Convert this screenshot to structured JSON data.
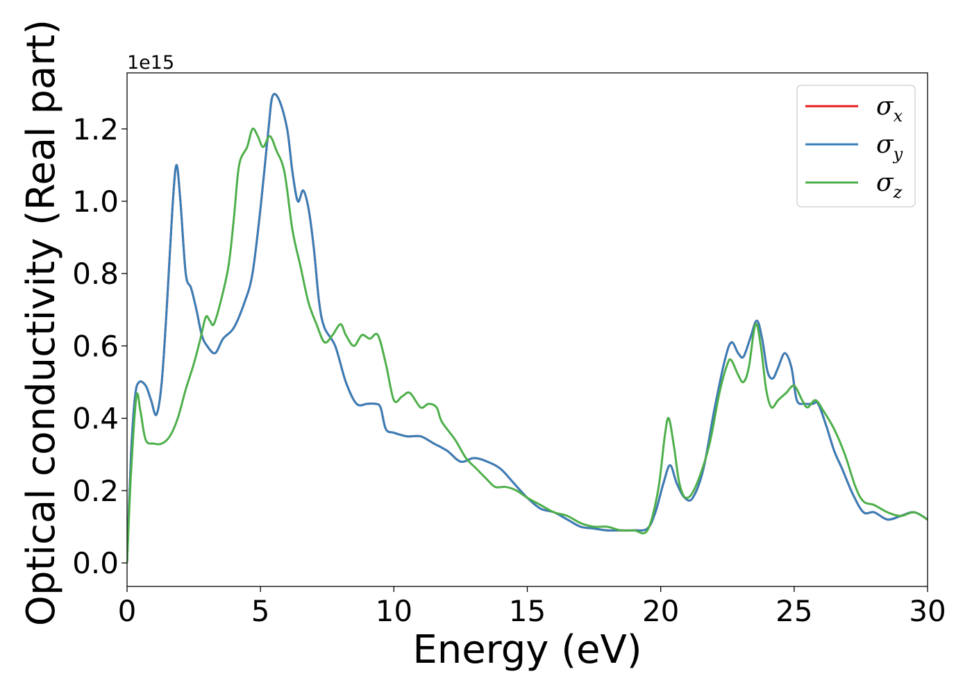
{
  "chart_data": {
    "type": "line",
    "xlabel": "Energy (eV)",
    "ylabel": "Optical conductivity (Real part)",
    "y_offset_text": "1e15",
    "xlim": [
      0,
      30
    ],
    "ylim": [
      -0.065,
      1.355
    ],
    "x_ticks": [
      0,
      5,
      10,
      15,
      20,
      25,
      30
    ],
    "x_tick_labels": [
      "0",
      "5",
      "10",
      "15",
      "20",
      "25",
      "30"
    ],
    "y_ticks": [
      0.0,
      0.2,
      0.4,
      0.6,
      0.8,
      1.0,
      1.2
    ],
    "y_tick_labels": [
      "0.0",
      "0.2",
      "0.4",
      "0.6",
      "0.8",
      "1.0",
      "1.2"
    ],
    "grid": false,
    "legend_position": "top-right",
    "series": [
      {
        "name": "σx",
        "legend_symbol": "σ",
        "legend_sub": "x",
        "color": "#e41a1c",
        "points": [
          [
            0,
            0
          ],
          [
            0.15,
            0.3
          ],
          [
            0.3,
            0.46
          ],
          [
            0.45,
            0.5
          ],
          [
            0.7,
            0.49
          ],
          [
            0.9,
            0.45
          ],
          [
            1.1,
            0.41
          ],
          [
            1.3,
            0.5
          ],
          [
            1.5,
            0.72
          ],
          [
            1.7,
            0.98
          ],
          [
            1.85,
            1.1
          ],
          [
            2.0,
            1.0
          ],
          [
            2.2,
            0.8
          ],
          [
            2.4,
            0.76
          ],
          [
            2.6,
            0.7
          ],
          [
            2.8,
            0.63
          ],
          [
            3.0,
            0.6
          ],
          [
            3.3,
            0.58
          ],
          [
            3.6,
            0.62
          ],
          [
            4.0,
            0.65
          ],
          [
            4.4,
            0.72
          ],
          [
            4.7,
            0.8
          ],
          [
            5.0,
            0.98
          ],
          [
            5.3,
            1.2
          ],
          [
            5.45,
            1.29
          ],
          [
            5.7,
            1.28
          ],
          [
            6.0,
            1.2
          ],
          [
            6.2,
            1.08
          ],
          [
            6.4,
            1.0
          ],
          [
            6.6,
            1.03
          ],
          [
            6.8,
            0.98
          ],
          [
            7.0,
            0.87
          ],
          [
            7.2,
            0.72
          ],
          [
            7.4,
            0.65
          ],
          [
            7.8,
            0.6
          ],
          [
            8.2,
            0.5
          ],
          [
            8.6,
            0.44
          ],
          [
            9.0,
            0.44
          ],
          [
            9.3,
            0.44
          ],
          [
            9.5,
            0.43
          ],
          [
            9.7,
            0.37
          ],
          [
            10.0,
            0.36
          ],
          [
            10.5,
            0.35
          ],
          [
            11.0,
            0.35
          ],
          [
            11.5,
            0.33
          ],
          [
            12.0,
            0.31
          ],
          [
            12.5,
            0.28
          ],
          [
            13.0,
            0.29
          ],
          [
            13.5,
            0.28
          ],
          [
            14.0,
            0.26
          ],
          [
            14.5,
            0.22
          ],
          [
            15.0,
            0.18
          ],
          [
            15.5,
            0.15
          ],
          [
            16.0,
            0.14
          ],
          [
            16.5,
            0.12
          ],
          [
            17.0,
            0.1
          ],
          [
            17.5,
            0.095
          ],
          [
            18.0,
            0.09
          ],
          [
            18.5,
            0.09
          ],
          [
            19.0,
            0.09
          ],
          [
            19.5,
            0.095
          ],
          [
            19.8,
            0.14
          ],
          [
            20.1,
            0.22
          ],
          [
            20.35,
            0.27
          ],
          [
            20.6,
            0.22
          ],
          [
            20.9,
            0.18
          ],
          [
            21.2,
            0.18
          ],
          [
            21.6,
            0.26
          ],
          [
            22.0,
            0.42
          ],
          [
            22.4,
            0.56
          ],
          [
            22.65,
            0.61
          ],
          [
            22.9,
            0.58
          ],
          [
            23.1,
            0.57
          ],
          [
            23.35,
            0.62
          ],
          [
            23.6,
            0.67
          ],
          [
            23.8,
            0.62
          ],
          [
            24.0,
            0.53
          ],
          [
            24.2,
            0.51
          ],
          [
            24.4,
            0.54
          ],
          [
            24.65,
            0.58
          ],
          [
            24.9,
            0.54
          ],
          [
            25.1,
            0.45
          ],
          [
            25.4,
            0.44
          ],
          [
            25.7,
            0.44
          ],
          [
            25.9,
            0.44
          ],
          [
            26.2,
            0.38
          ],
          [
            26.5,
            0.31
          ],
          [
            26.8,
            0.26
          ],
          [
            27.2,
            0.19
          ],
          [
            27.6,
            0.14
          ],
          [
            28.0,
            0.14
          ],
          [
            28.5,
            0.12
          ],
          [
            29.0,
            0.13
          ],
          [
            29.5,
            0.14
          ],
          [
            30.0,
            0.12
          ]
        ]
      },
      {
        "name": "σy",
        "legend_symbol": "σ",
        "legend_sub": "y",
        "color": "#377eb8",
        "points": [
          [
            0,
            0
          ],
          [
            0.15,
            0.3
          ],
          [
            0.3,
            0.46
          ],
          [
            0.45,
            0.5
          ],
          [
            0.7,
            0.49
          ],
          [
            0.9,
            0.45
          ],
          [
            1.1,
            0.41
          ],
          [
            1.3,
            0.5
          ],
          [
            1.5,
            0.72
          ],
          [
            1.7,
            0.98
          ],
          [
            1.85,
            1.1
          ],
          [
            2.0,
            1.0
          ],
          [
            2.2,
            0.8
          ],
          [
            2.4,
            0.76
          ],
          [
            2.6,
            0.7
          ],
          [
            2.8,
            0.63
          ],
          [
            3.0,
            0.6
          ],
          [
            3.3,
            0.58
          ],
          [
            3.6,
            0.62
          ],
          [
            4.0,
            0.65
          ],
          [
            4.4,
            0.72
          ],
          [
            4.7,
            0.8
          ],
          [
            5.0,
            0.98
          ],
          [
            5.3,
            1.2
          ],
          [
            5.45,
            1.29
          ],
          [
            5.7,
            1.28
          ],
          [
            6.0,
            1.2
          ],
          [
            6.2,
            1.08
          ],
          [
            6.4,
            1.0
          ],
          [
            6.6,
            1.03
          ],
          [
            6.8,
            0.98
          ],
          [
            7.0,
            0.87
          ],
          [
            7.2,
            0.72
          ],
          [
            7.4,
            0.65
          ],
          [
            7.8,
            0.6
          ],
          [
            8.2,
            0.5
          ],
          [
            8.6,
            0.44
          ],
          [
            9.0,
            0.44
          ],
          [
            9.3,
            0.44
          ],
          [
            9.5,
            0.43
          ],
          [
            9.7,
            0.37
          ],
          [
            10.0,
            0.36
          ],
          [
            10.5,
            0.35
          ],
          [
            11.0,
            0.35
          ],
          [
            11.5,
            0.33
          ],
          [
            12.0,
            0.31
          ],
          [
            12.5,
            0.28
          ],
          [
            13.0,
            0.29
          ],
          [
            13.5,
            0.28
          ],
          [
            14.0,
            0.26
          ],
          [
            14.5,
            0.22
          ],
          [
            15.0,
            0.18
          ],
          [
            15.5,
            0.15
          ],
          [
            16.0,
            0.14
          ],
          [
            16.5,
            0.12
          ],
          [
            17.0,
            0.1
          ],
          [
            17.5,
            0.095
          ],
          [
            18.0,
            0.09
          ],
          [
            18.5,
            0.09
          ],
          [
            19.0,
            0.09
          ],
          [
            19.5,
            0.095
          ],
          [
            19.8,
            0.14
          ],
          [
            20.1,
            0.22
          ],
          [
            20.35,
            0.27
          ],
          [
            20.6,
            0.22
          ],
          [
            20.9,
            0.18
          ],
          [
            21.2,
            0.18
          ],
          [
            21.6,
            0.26
          ],
          [
            22.0,
            0.42
          ],
          [
            22.4,
            0.56
          ],
          [
            22.65,
            0.61
          ],
          [
            22.9,
            0.58
          ],
          [
            23.1,
            0.57
          ],
          [
            23.35,
            0.62
          ],
          [
            23.6,
            0.67
          ],
          [
            23.8,
            0.62
          ],
          [
            24.0,
            0.53
          ],
          [
            24.2,
            0.51
          ],
          [
            24.4,
            0.54
          ],
          [
            24.65,
            0.58
          ],
          [
            24.9,
            0.54
          ],
          [
            25.1,
            0.45
          ],
          [
            25.4,
            0.44
          ],
          [
            25.7,
            0.44
          ],
          [
            25.9,
            0.44
          ],
          [
            26.2,
            0.38
          ],
          [
            26.5,
            0.31
          ],
          [
            26.8,
            0.26
          ],
          [
            27.2,
            0.19
          ],
          [
            27.6,
            0.14
          ],
          [
            28.0,
            0.14
          ],
          [
            28.5,
            0.12
          ],
          [
            29.0,
            0.13
          ],
          [
            29.5,
            0.14
          ],
          [
            30.0,
            0.12
          ]
        ]
      },
      {
        "name": "σz",
        "legend_symbol": "σ",
        "legend_sub": "z",
        "color": "#4daf4a",
        "points": [
          [
            0,
            0
          ],
          [
            0.15,
            0.25
          ],
          [
            0.35,
            0.46
          ],
          [
            0.5,
            0.42
          ],
          [
            0.7,
            0.34
          ],
          [
            1.0,
            0.33
          ],
          [
            1.3,
            0.33
          ],
          [
            1.6,
            0.35
          ],
          [
            1.9,
            0.4
          ],
          [
            2.2,
            0.48
          ],
          [
            2.5,
            0.55
          ],
          [
            2.75,
            0.62
          ],
          [
            2.95,
            0.68
          ],
          [
            3.1,
            0.67
          ],
          [
            3.25,
            0.66
          ],
          [
            3.5,
            0.72
          ],
          [
            3.8,
            0.82
          ],
          [
            4.0,
            0.95
          ],
          [
            4.2,
            1.1
          ],
          [
            4.5,
            1.15
          ],
          [
            4.7,
            1.2
          ],
          [
            4.9,
            1.18
          ],
          [
            5.1,
            1.15
          ],
          [
            5.35,
            1.18
          ],
          [
            5.6,
            1.14
          ],
          [
            5.9,
            1.08
          ],
          [
            6.2,
            0.92
          ],
          [
            6.5,
            0.82
          ],
          [
            6.8,
            0.72
          ],
          [
            7.1,
            0.66
          ],
          [
            7.4,
            0.61
          ],
          [
            7.7,
            0.63
          ],
          [
            8.0,
            0.66
          ],
          [
            8.2,
            0.63
          ],
          [
            8.5,
            0.6
          ],
          [
            8.8,
            0.63
          ],
          [
            9.1,
            0.62
          ],
          [
            9.4,
            0.63
          ],
          [
            9.7,
            0.55
          ],
          [
            10.0,
            0.45
          ],
          [
            10.3,
            0.46
          ],
          [
            10.6,
            0.47
          ],
          [
            11.0,
            0.43
          ],
          [
            11.3,
            0.44
          ],
          [
            11.6,
            0.43
          ],
          [
            11.8,
            0.39
          ],
          [
            12.3,
            0.34
          ],
          [
            12.7,
            0.29
          ],
          [
            13.1,
            0.26
          ],
          [
            13.5,
            0.23
          ],
          [
            13.8,
            0.21
          ],
          [
            14.2,
            0.21
          ],
          [
            14.6,
            0.2
          ],
          [
            15.0,
            0.18
          ],
          [
            15.5,
            0.16
          ],
          [
            16.0,
            0.14
          ],
          [
            16.5,
            0.13
          ],
          [
            17.0,
            0.11
          ],
          [
            17.5,
            0.1
          ],
          [
            18.0,
            0.1
          ],
          [
            18.5,
            0.09
          ],
          [
            19.0,
            0.09
          ],
          [
            19.5,
            0.09
          ],
          [
            19.9,
            0.2
          ],
          [
            20.15,
            0.35
          ],
          [
            20.3,
            0.4
          ],
          [
            20.5,
            0.32
          ],
          [
            20.7,
            0.22
          ],
          [
            20.95,
            0.18
          ],
          [
            21.3,
            0.21
          ],
          [
            21.8,
            0.32
          ],
          [
            22.2,
            0.47
          ],
          [
            22.5,
            0.55
          ],
          [
            22.65,
            0.56
          ],
          [
            22.9,
            0.52
          ],
          [
            23.1,
            0.5
          ],
          [
            23.3,
            0.54
          ],
          [
            23.55,
            0.66
          ],
          [
            23.75,
            0.6
          ],
          [
            23.95,
            0.48
          ],
          [
            24.15,
            0.43
          ],
          [
            24.4,
            0.45
          ],
          [
            24.7,
            0.47
          ],
          [
            25.0,
            0.49
          ],
          [
            25.3,
            0.45
          ],
          [
            25.5,
            0.43
          ],
          [
            25.8,
            0.45
          ],
          [
            26.1,
            0.42
          ],
          [
            26.5,
            0.37
          ],
          [
            26.9,
            0.3
          ],
          [
            27.3,
            0.21
          ],
          [
            27.6,
            0.17
          ],
          [
            28.0,
            0.16
          ],
          [
            28.5,
            0.14
          ],
          [
            29.0,
            0.13
          ],
          [
            29.5,
            0.14
          ],
          [
            30.0,
            0.12
          ]
        ]
      }
    ]
  }
}
